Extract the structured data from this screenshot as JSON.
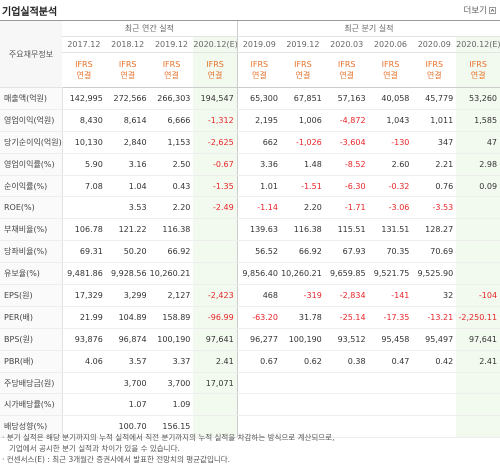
{
  "header": {
    "title": "기업실적분석",
    "more": "더보기"
  },
  "table": {
    "corner": "주요재무정보",
    "groups": [
      {
        "label": "최근 연간 실적",
        "span": 4
      },
      {
        "label": "최근 분기 실적",
        "span": 6
      }
    ],
    "columns": [
      {
        "period": "2017.12",
        "basis": [
          "IFRS",
          "연결"
        ]
      },
      {
        "period": "2018.12",
        "basis": [
          "IFRS",
          "연결"
        ]
      },
      {
        "period": "2019.12",
        "basis": [
          "IFRS",
          "연결"
        ]
      },
      {
        "period": "2020.12(E)",
        "basis": [
          "IFRS",
          "연결"
        ],
        "estimate": true
      },
      {
        "period": "2019.09",
        "basis": [
          "IFRS",
          "연결"
        ]
      },
      {
        "period": "2019.12",
        "basis": [
          "IFRS",
          "연결"
        ]
      },
      {
        "period": "2020.03",
        "basis": [
          "IFRS",
          "연결"
        ]
      },
      {
        "period": "2020.06",
        "basis": [
          "IFRS",
          "연결"
        ]
      },
      {
        "period": "2020.09",
        "basis": [
          "IFRS",
          "연결"
        ]
      },
      {
        "period": "2020.12(E)",
        "basis": [
          "IFRS",
          "연결"
        ],
        "estimate": true
      }
    ],
    "rows": [
      {
        "label": "매출액(억원)",
        "cells": [
          "142,995",
          "272,566",
          "266,303",
          "194,547",
          "65,300",
          "67,851",
          "57,163",
          "40,058",
          "45,779",
          "53,260"
        ]
      },
      {
        "label": "영업이익(억원)",
        "cells": [
          "8,430",
          "8,614",
          "6,666",
          "-1,312",
          "2,195",
          "1,006",
          "-4,872",
          "1,043",
          "1,011",
          "1,585"
        ]
      },
      {
        "label": "당기순이익(억원)",
        "cells": [
          "10,130",
          "2,840",
          "1,153",
          "-2,625",
          "662",
          "-1,026",
          "-3,604",
          "-130",
          "347",
          "47"
        ]
      },
      {
        "label": "영업이익률(%)",
        "cells": [
          "5.90",
          "3.16",
          "2.50",
          "-0.67",
          "3.36",
          "1.48",
          "-8.52",
          "2.60",
          "2.21",
          "2.98"
        ]
      },
      {
        "label": "순이익률(%)",
        "cells": [
          "7.08",
          "1.04",
          "0.43",
          "-1.35",
          "1.01",
          "-1.51",
          "-6.30",
          "-0.32",
          "0.76",
          "0.09"
        ]
      },
      {
        "label": "ROE(%)",
        "cells": [
          null,
          "3.53",
          "2.20",
          "-2.49",
          "-1.14",
          "2.20",
          "-1.71",
          "-3.06",
          "-3.53",
          null
        ]
      },
      {
        "label": "부채비율(%)",
        "cells": [
          "106.78",
          "121.22",
          "116.38",
          null,
          "139.63",
          "116.38",
          "115.51",
          "131.51",
          "128.27",
          null
        ]
      },
      {
        "label": "당좌비율(%)",
        "cells": [
          "69.31",
          "50.20",
          "66.92",
          null,
          "56.52",
          "66.92",
          "67.93",
          "70.35",
          "70.69",
          null
        ]
      },
      {
        "label": "유보율(%)",
        "cells": [
          "9,481.86",
          "9,928.56",
          "10,260.21",
          null,
          "9,856.40",
          "10,260.21",
          "9,659.85",
          "9,521.75",
          "9,525.90",
          null
        ]
      },
      {
        "label": "EPS(원)",
        "cells": [
          "17,329",
          "3,299",
          "2,127",
          "-2,423",
          "468",
          "-319",
          "-2,834",
          "-141",
          "32",
          "-104"
        ]
      },
      {
        "label": "PER(배)",
        "cells": [
          "21.99",
          "104.89",
          "158.89",
          "-96.99",
          "-63.20",
          "31.78",
          "-25.14",
          "-17.35",
          "-13.21",
          "-2,250.11"
        ]
      },
      {
        "label": "BPS(원)",
        "cells": [
          "93,876",
          "96,874",
          "100,190",
          "97,641",
          "96,277",
          "100,190",
          "93,512",
          "95,458",
          "95,497",
          "97,641"
        ]
      },
      {
        "label": "PBR(배)",
        "cells": [
          "4.06",
          "3.57",
          "3.37",
          "2.41",
          "0.67",
          "0.62",
          "0.38",
          "0.47",
          "0.42",
          "2.41"
        ]
      },
      {
        "label": "주당배당금(원)",
        "cells": [
          null,
          "3,700",
          "3,700",
          "17,071",
          null,
          null,
          null,
          null,
          null,
          null
        ]
      },
      {
        "label": "시가배당률(%)",
        "cells": [
          null,
          "1.07",
          "1.09",
          null,
          null,
          null,
          null,
          null,
          null,
          null
        ]
      },
      {
        "label": "배당성향(%)",
        "cells": [
          null,
          "100.70",
          "156.15",
          null,
          null,
          null,
          null,
          null,
          null,
          null
        ]
      }
    ]
  },
  "notes": [
    [
      "분기 실적은 해당 분기까지의 누적 실적에서 직전 분기까지의 누적 실적을 차감하는 방식으로 계산되므로,",
      "기업에서 공시한 분기 실적과 차이가 있을 수 있습니다."
    ],
    [
      "컨센서스(E) : 최근 3개월간 증권사에서 발표한 전망치의 평균값입니다."
    ]
  ]
}
